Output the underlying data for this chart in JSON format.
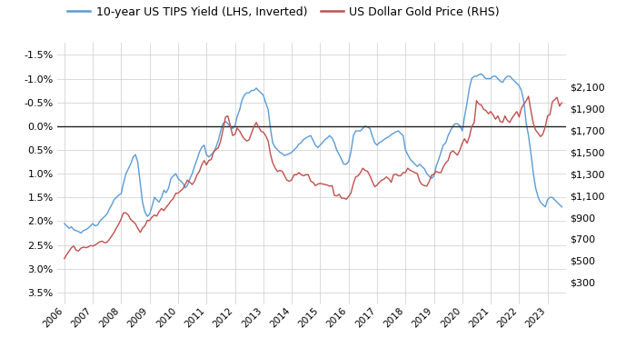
{
  "legend_labels": [
    "10-year US TIPS Yield (LHS, Inverted)",
    "US Dollar Gold Price (RHS)"
  ],
  "legend_colors": [
    "#5B9BD5",
    "#C0504D"
  ],
  "lhs_yticks": [
    -1.5,
    -1.0,
    -0.5,
    0.0,
    0.5,
    1.0,
    1.5,
    2.0,
    2.5,
    3.0,
    3.5
  ],
  "rhs_yticks": [
    300,
    500,
    700,
    900,
    1100,
    1300,
    1500,
    1700,
    1900,
    2100
  ],
  "lhs_ylim": [
    -1.75,
    3.75
  ],
  "rhs_ylim": [
    100,
    2500
  ],
  "background_color": "#FFFFFF",
  "grid_color": "#CCCCCC",
  "zero_line_color": "#222222",
  "tips_color": "#5B9BD5",
  "gold_color": "#C0504D",
  "tips_data": {
    "dates": [
      2006.0,
      2006.08,
      2006.17,
      2006.25,
      2006.33,
      2006.42,
      2006.5,
      2006.58,
      2006.67,
      2006.75,
      2006.83,
      2006.92,
      2007.0,
      2007.08,
      2007.17,
      2007.25,
      2007.33,
      2007.42,
      2007.5,
      2007.58,
      2007.67,
      2007.75,
      2007.83,
      2007.92,
      2008.0,
      2008.08,
      2008.17,
      2008.25,
      2008.33,
      2008.42,
      2008.5,
      2008.58,
      2008.67,
      2008.75,
      2008.83,
      2008.92,
      2009.0,
      2009.08,
      2009.17,
      2009.25,
      2009.33,
      2009.42,
      2009.5,
      2009.58,
      2009.67,
      2009.75,
      2009.83,
      2009.92,
      2010.0,
      2010.08,
      2010.17,
      2010.25,
      2010.33,
      2010.42,
      2010.5,
      2010.58,
      2010.67,
      2010.75,
      2010.83,
      2010.92,
      2011.0,
      2011.08,
      2011.17,
      2011.25,
      2011.33,
      2011.42,
      2011.5,
      2011.58,
      2011.67,
      2011.75,
      2011.83,
      2011.92,
      2012.0,
      2012.08,
      2012.17,
      2012.25,
      2012.33,
      2012.42,
      2012.5,
      2012.58,
      2012.67,
      2012.75,
      2012.83,
      2012.92,
      2013.0,
      2013.08,
      2013.17,
      2013.25,
      2013.33,
      2013.42,
      2013.5,
      2013.58,
      2013.67,
      2013.75,
      2013.83,
      2013.92,
      2014.0,
      2014.08,
      2014.17,
      2014.25,
      2014.33,
      2014.42,
      2014.5,
      2014.58,
      2014.67,
      2014.75,
      2014.83,
      2014.92,
      2015.0,
      2015.08,
      2015.17,
      2015.25,
      2015.33,
      2015.42,
      2015.5,
      2015.58,
      2015.67,
      2015.75,
      2015.83,
      2015.92,
      2016.0,
      2016.08,
      2016.17,
      2016.25,
      2016.33,
      2016.42,
      2016.5,
      2016.58,
      2016.67,
      2016.75,
      2016.83,
      2016.92,
      2017.0,
      2017.08,
      2017.17,
      2017.25,
      2017.33,
      2017.42,
      2017.5,
      2017.58,
      2017.67,
      2017.75,
      2017.83,
      2017.92,
      2018.0,
      2018.08,
      2018.17,
      2018.25,
      2018.33,
      2018.42,
      2018.5,
      2018.58,
      2018.67,
      2018.75,
      2018.83,
      2018.92,
      2019.0,
      2019.08,
      2019.17,
      2019.25,
      2019.33,
      2019.42,
      2019.5,
      2019.58,
      2019.67,
      2019.75,
      2019.83,
      2019.92,
      2020.0,
      2020.08,
      2020.17,
      2020.25,
      2020.33,
      2020.42,
      2020.5,
      2020.58,
      2020.67,
      2020.75,
      2020.83,
      2020.92,
      2021.0,
      2021.08,
      2021.17,
      2021.25,
      2021.33,
      2021.42,
      2021.5,
      2021.58,
      2021.67,
      2021.75,
      2021.83,
      2021.92,
      2022.0,
      2022.08,
      2022.17,
      2022.25,
      2022.33,
      2022.42,
      2022.5,
      2022.58,
      2022.67,
      2022.75,
      2022.83,
      2022.92,
      2023.0,
      2023.08,
      2023.17,
      2023.25,
      2023.33,
      2023.42,
      2023.5
    ],
    "values": [
      2.05,
      2.1,
      2.15,
      2.12,
      2.18,
      2.2,
      2.22,
      2.25,
      2.2,
      2.18,
      2.15,
      2.1,
      2.05,
      2.1,
      2.08,
      2.0,
      1.95,
      1.9,
      1.85,
      1.75,
      1.65,
      1.55,
      1.5,
      1.45,
      1.42,
      1.2,
      1.0,
      0.9,
      0.8,
      0.65,
      0.6,
      0.75,
      1.2,
      1.6,
      1.8,
      1.9,
      1.85,
      1.7,
      1.5,
      1.55,
      1.6,
      1.5,
      1.35,
      1.4,
      1.3,
      1.1,
      1.05,
      1.0,
      1.1,
      1.15,
      1.2,
      1.3,
      1.25,
      1.1,
      1.0,
      0.85,
      0.7,
      0.55,
      0.45,
      0.4,
      0.6,
      0.65,
      0.6,
      0.55,
      0.45,
      0.3,
      0.1,
      -0.05,
      -0.1,
      -0.05,
      0.0,
      0.05,
      0.0,
      -0.2,
      -0.35,
      -0.55,
      -0.65,
      -0.7,
      -0.7,
      -0.75,
      -0.75,
      -0.8,
      -0.75,
      -0.7,
      -0.65,
      -0.5,
      -0.35,
      0.05,
      0.35,
      0.45,
      0.5,
      0.55,
      0.58,
      0.62,
      0.6,
      0.58,
      0.55,
      0.5,
      0.45,
      0.38,
      0.35,
      0.28,
      0.25,
      0.22,
      0.2,
      0.3,
      0.4,
      0.45,
      0.4,
      0.35,
      0.28,
      0.25,
      0.2,
      0.25,
      0.35,
      0.5,
      0.6,
      0.7,
      0.8,
      0.8,
      0.75,
      0.55,
      0.2,
      0.1,
      0.1,
      0.1,
      0.05,
      0.0,
      0.02,
      0.05,
      0.2,
      0.35,
      0.4,
      0.35,
      0.32,
      0.28,
      0.25,
      0.22,
      0.18,
      0.15,
      0.12,
      0.1,
      0.15,
      0.2,
      0.5,
      0.6,
      0.7,
      0.75,
      0.8,
      0.85,
      0.8,
      0.85,
      0.9,
      1.0,
      1.05,
      1.1,
      1.05,
      0.85,
      0.7,
      0.55,
      0.4,
      0.35,
      0.2,
      0.1,
      0.0,
      -0.05,
      -0.05,
      0.0,
      0.1,
      -0.2,
      -0.5,
      -0.8,
      -1.0,
      -1.05,
      -1.05,
      -1.08,
      -1.1,
      -1.05,
      -1.0,
      -1.0,
      -1.0,
      -1.05,
      -1.05,
      -1.0,
      -0.95,
      -0.92,
      -1.0,
      -1.05,
      -1.05,
      -1.0,
      -0.95,
      -0.9,
      -0.85,
      -0.75,
      -0.5,
      -0.05,
      0.2,
      0.6,
      1.0,
      1.3,
      1.5,
      1.6,
      1.65,
      1.7,
      1.55,
      1.5,
      1.5,
      1.55,
      1.6,
      1.65,
      1.7
    ]
  },
  "gold_data": {
    "dates": [
      2006.0,
      2006.08,
      2006.17,
      2006.25,
      2006.33,
      2006.42,
      2006.5,
      2006.58,
      2006.67,
      2006.75,
      2006.83,
      2006.92,
      2007.0,
      2007.08,
      2007.17,
      2007.25,
      2007.33,
      2007.42,
      2007.5,
      2007.58,
      2007.67,
      2007.75,
      2007.83,
      2007.92,
      2008.0,
      2008.08,
      2008.17,
      2008.25,
      2008.33,
      2008.42,
      2008.5,
      2008.58,
      2008.67,
      2008.75,
      2008.83,
      2008.92,
      2009.0,
      2009.08,
      2009.17,
      2009.25,
      2009.33,
      2009.42,
      2009.5,
      2009.58,
      2009.67,
      2009.75,
      2009.83,
      2009.92,
      2010.0,
      2010.08,
      2010.17,
      2010.25,
      2010.33,
      2010.42,
      2010.5,
      2010.58,
      2010.67,
      2010.75,
      2010.83,
      2010.92,
      2011.0,
      2011.08,
      2011.17,
      2011.25,
      2011.33,
      2011.42,
      2011.5,
      2011.58,
      2011.67,
      2011.75,
      2011.83,
      2011.92,
      2012.0,
      2012.08,
      2012.17,
      2012.25,
      2012.33,
      2012.42,
      2012.5,
      2012.58,
      2012.67,
      2012.75,
      2012.83,
      2012.92,
      2013.0,
      2013.08,
      2013.17,
      2013.25,
      2013.33,
      2013.42,
      2013.5,
      2013.58,
      2013.67,
      2013.75,
      2013.83,
      2013.92,
      2014.0,
      2014.08,
      2014.17,
      2014.25,
      2014.33,
      2014.42,
      2014.5,
      2014.58,
      2014.67,
      2014.75,
      2014.83,
      2014.92,
      2015.0,
      2015.08,
      2015.17,
      2015.25,
      2015.33,
      2015.42,
      2015.5,
      2015.58,
      2015.67,
      2015.75,
      2015.83,
      2015.92,
      2016.0,
      2016.08,
      2016.17,
      2016.25,
      2016.33,
      2016.42,
      2016.5,
      2016.58,
      2016.67,
      2016.75,
      2016.83,
      2016.92,
      2017.0,
      2017.08,
      2017.17,
      2017.25,
      2017.33,
      2017.42,
      2017.5,
      2017.58,
      2017.67,
      2017.75,
      2017.83,
      2017.92,
      2018.0,
      2018.08,
      2018.17,
      2018.25,
      2018.33,
      2018.42,
      2018.5,
      2018.58,
      2018.67,
      2018.75,
      2018.83,
      2018.92,
      2019.0,
      2019.08,
      2019.17,
      2019.25,
      2019.33,
      2019.42,
      2019.5,
      2019.58,
      2019.67,
      2019.75,
      2019.83,
      2019.92,
      2020.0,
      2020.08,
      2020.17,
      2020.25,
      2020.33,
      2020.42,
      2020.5,
      2020.58,
      2020.67,
      2020.75,
      2020.83,
      2020.92,
      2021.0,
      2021.08,
      2021.17,
      2021.25,
      2021.33,
      2021.42,
      2021.5,
      2021.58,
      2021.67,
      2021.75,
      2021.83,
      2021.92,
      2022.0,
      2022.08,
      2022.17,
      2022.25,
      2022.33,
      2022.42,
      2022.5,
      2022.58,
      2022.67,
      2022.75,
      2022.83,
      2022.92,
      2023.0,
      2023.08,
      2023.17,
      2023.25,
      2023.33,
      2023.42,
      2023.5
    ],
    "values": [
      520,
      555,
      590,
      620,
      635,
      595,
      590,
      615,
      625,
      620,
      625,
      640,
      635,
      645,
      660,
      675,
      680,
      665,
      670,
      695,
      730,
      760,
      800,
      840,
      885,
      940,
      940,
      920,
      880,
      860,
      840,
      800,
      760,
      800,
      820,
      870,
      870,
      900,
      920,
      910,
      950,
      980,
      960,
      990,
      1020,
      1050,
      1070,
      1120,
      1120,
      1140,
      1160,
      1200,
      1240,
      1220,
      1200,
      1230,
      1290,
      1320,
      1380,
      1420,
      1380,
      1420,
      1430,
      1500,
      1520,
      1540,
      1600,
      1700,
      1820,
      1830,
      1750,
      1650,
      1660,
      1720,
      1690,
      1650,
      1620,
      1600,
      1610,
      1670,
      1730,
      1770,
      1730,
      1690,
      1680,
      1650,
      1600,
      1480,
      1400,
      1350,
      1320,
      1330,
      1320,
      1280,
      1240,
      1230,
      1245,
      1290,
      1290,
      1310,
      1290,
      1280,
      1290,
      1290,
      1230,
      1220,
      1190,
      1205,
      1210,
      1205,
      1200,
      1195,
      1185,
      1190,
      1100,
      1095,
      1110,
      1075,
      1075,
      1065,
      1090,
      1120,
      1210,
      1270,
      1280,
      1310,
      1350,
      1330,
      1320,
      1280,
      1230,
      1180,
      1195,
      1220,
      1240,
      1250,
      1270,
      1250,
      1220,
      1290,
      1295,
      1280,
      1280,
      1310,
      1310,
      1350,
      1330,
      1320,
      1310,
      1300,
      1230,
      1200,
      1190,
      1185,
      1225,
      1285,
      1295,
      1320,
      1310,
      1310,
      1360,
      1400,
      1420,
      1490,
      1510,
      1490,
      1470,
      1520,
      1580,
      1620,
      1580,
      1640,
      1730,
      1770,
      1970,
      1940,
      1930,
      1890,
      1880,
      1850,
      1870,
      1840,
      1800,
      1830,
      1780,
      1770,
      1830,
      1790,
      1770,
      1810,
      1840,
      1870,
      1820,
      1900,
      1940,
      1970,
      2010,
      1870,
      1760,
      1700,
      1670,
      1640,
      1660,
      1730,
      1830,
      1840,
      1960,
      1980,
      2000,
      1920,
      1950
    ]
  }
}
